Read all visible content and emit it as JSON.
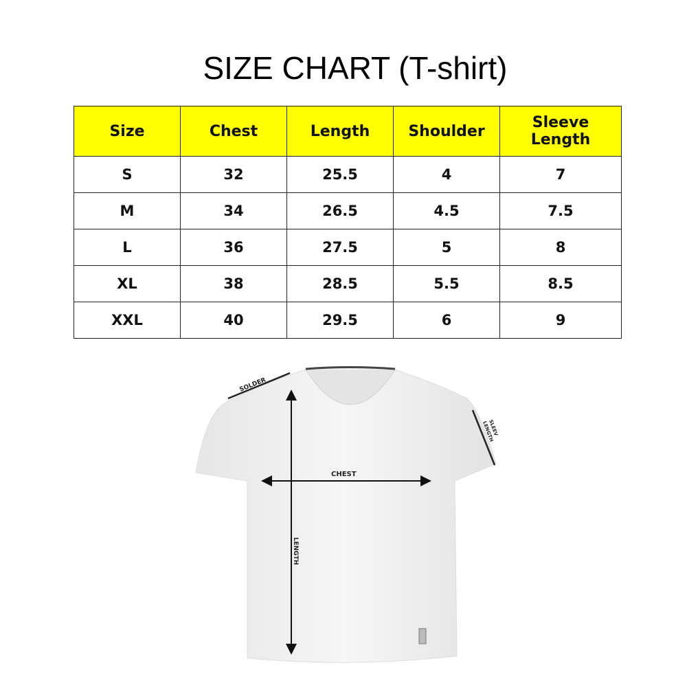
{
  "title": "SIZE CHART (T-shirt)",
  "table": {
    "headers": [
      "Size",
      "Chest",
      "Length",
      "Shoulder",
      "Sleeve Length"
    ],
    "rows": [
      [
        "S",
        "32",
        "25.5",
        "4",
        "7"
      ],
      [
        "M",
        "34",
        "26.5",
        "4.5",
        "7.5"
      ],
      [
        "L",
        "36",
        "27.5",
        "5",
        "8"
      ],
      [
        "XL",
        "38",
        "28.5",
        "5.5",
        "8.5"
      ],
      [
        "XXL",
        "40",
        "29.5",
        "6",
        "9"
      ]
    ],
    "header_color": "#ffff00"
  },
  "diagram": {
    "labels": {
      "shoulder": "SOLDER",
      "sleeve_line1": "SLEEV",
      "sleeve_line2": "LENGTH",
      "chest": "CHEST",
      "length": "LENGTH"
    }
  }
}
